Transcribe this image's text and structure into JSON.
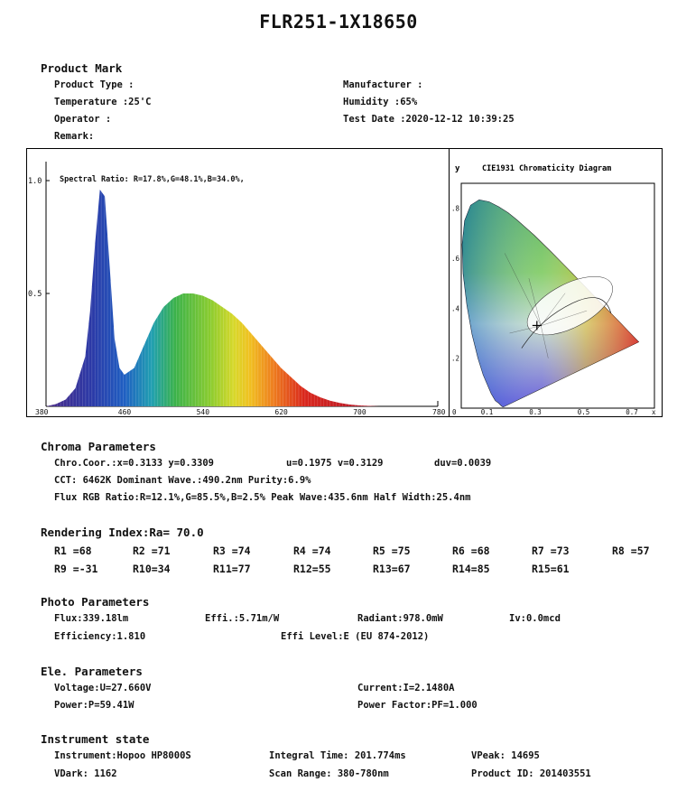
{
  "title": "FLR251-1X18650",
  "product_mark": {
    "heading": "Product Mark",
    "product_type": "Product Type :",
    "temperature": "Temperature :25'C",
    "operator": "Operator :",
    "remark": "Remark:",
    "manufacturer": "Manufacturer :",
    "humidity": "Humidity :65%",
    "test_date": "Test Date :2020-12-12 10:39:25"
  },
  "spectrum": {
    "ratio": "Spectral Ratio: R=17.8%,G=48.1%,B=34.0%,",
    "y_ticks": [
      "1.0",
      "0.5"
    ],
    "x_ticks": [
      "380",
      "460",
      "540",
      "620",
      "700",
      "780"
    ]
  },
  "chart_data": {
    "type": "area",
    "title": "",
    "xlabel": "",
    "ylabel": "",
    "xlim": [
      380,
      780
    ],
    "ylim": [
      0,
      1.0
    ],
    "x": [
      380,
      390,
      400,
      410,
      420,
      425,
      430,
      435,
      440,
      445,
      450,
      455,
      460,
      470,
      480,
      490,
      500,
      510,
      520,
      530,
      540,
      550,
      560,
      570,
      580,
      590,
      600,
      610,
      620,
      630,
      640,
      650,
      660,
      670,
      680,
      690,
      700,
      710,
      720
    ],
    "values": [
      0.0,
      0.01,
      0.03,
      0.08,
      0.22,
      0.42,
      0.72,
      0.96,
      0.93,
      0.62,
      0.3,
      0.17,
      0.14,
      0.17,
      0.27,
      0.37,
      0.44,
      0.48,
      0.5,
      0.5,
      0.49,
      0.47,
      0.44,
      0.41,
      0.37,
      0.32,
      0.27,
      0.22,
      0.17,
      0.13,
      0.09,
      0.06,
      0.04,
      0.025,
      0.015,
      0.008,
      0.004,
      0.002,
      0.0
    ]
  },
  "cie": {
    "axis_label": "y",
    "title": "CIE1931 Chromaticity Diagram",
    "y_ticks": [
      ".8",
      ".6",
      ".4",
      ".2"
    ],
    "x_ticks": [
      "0",
      "0.1",
      "0.3",
      "0.5",
      "0.7",
      "x"
    ],
    "point_x": 0.3133,
    "point_y": 0.3309
  },
  "chroma": {
    "heading": "Chroma Parameters",
    "line1a": "Chro.Coor.:x=0.3133  y=0.3309",
    "line1b": "u=0.1975  v=0.3129",
    "line1c": "duv=0.0039",
    "line2": "CCT: 6462K   Dominant Wave.:490.2nm   Purity:6.9%",
    "line3": "Flux RGB Ratio:R=12.1%,G=85.5%,B=2.5%   Peak Wave:435.6nm   Half Width:25.4nm"
  },
  "rendering": {
    "heading": "Rendering Index:Ra= 70.0",
    "row1": [
      "R1 =68",
      "R2 =71",
      "R3 =74",
      "R4 =74",
      "R5 =75",
      "R6 =68",
      "R7 =73",
      "R8 =57"
    ],
    "row2": [
      "R9 =-31",
      "R10=34",
      "R11=77",
      "R12=55",
      "R13=67",
      "R14=85",
      "R15=61"
    ]
  },
  "photo": {
    "heading": "Photo Parameters",
    "flux": "Flux:339.18lm",
    "effi": "Effi.:5.71m/W",
    "radiant": "Radiant:978.0mW",
    "iv": "Iv:0.0mcd",
    "efficiency": "Efficiency:1.810",
    "effi_level": "Effi Level:E (EU 874-2012)"
  },
  "ele": {
    "heading": "Ele. Parameters",
    "voltage": "Voltage:U=27.660V",
    "current": "Current:I=2.1480A",
    "power": "Power:P=59.41W",
    "power_factor": "Power Factor:PF=1.000"
  },
  "instrument": {
    "heading": "Instrument state",
    "instrument": "Instrument:Hopoo HP8000S",
    "integral_time": "Integral Time: 201.774ms",
    "vpeak": "VPeak: 14695",
    "vdark": "VDark: 1162",
    "scan_range": "Scan Range: 380-780nm",
    "product_id": "Product ID: 201403551"
  }
}
